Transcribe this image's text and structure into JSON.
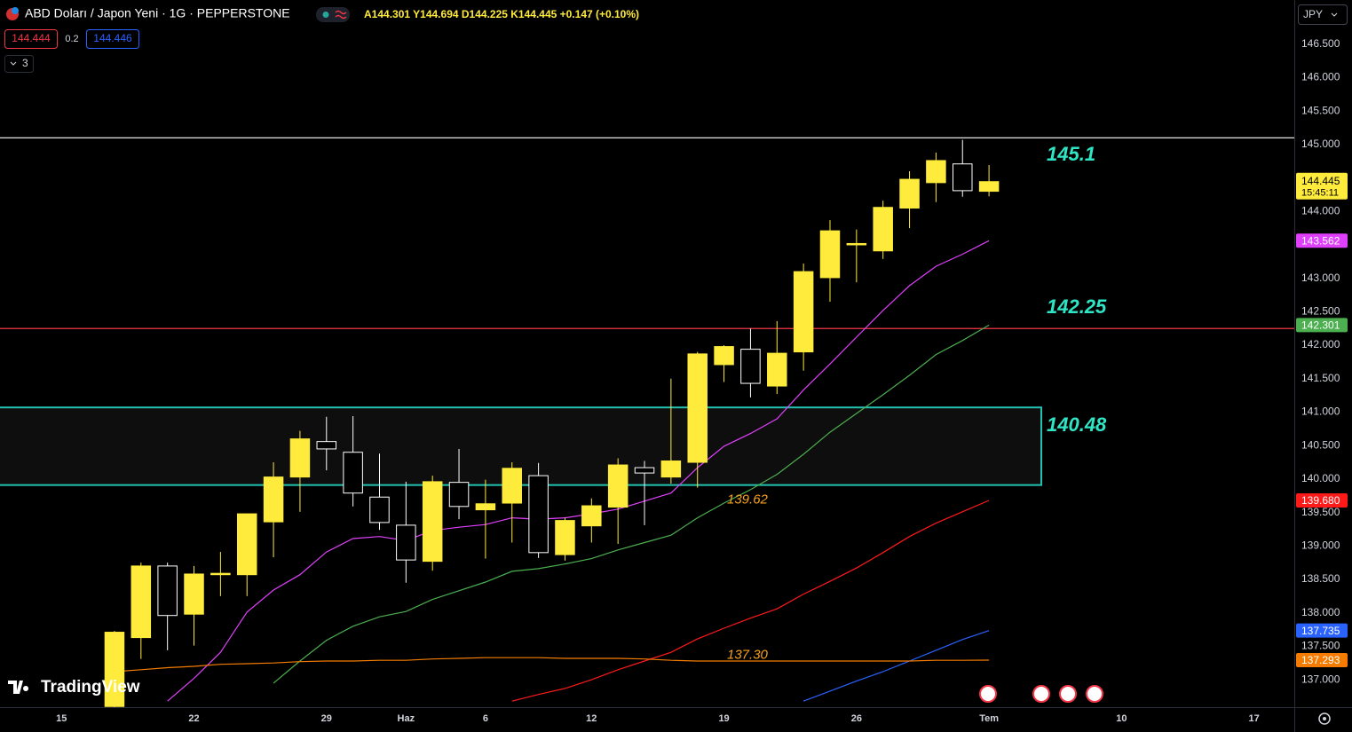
{
  "header": {
    "title": "ABD Doları / Japon Yeni · 1G · PEPPERSTONE",
    "ohlc": "A144.301 Y144.694 D144.225 K144.445 +0.147 (+0.10%)",
    "sell": "144.444",
    "spread": "0.2",
    "buy": "144.446",
    "indicators": "3",
    "currency": "JPY",
    "logo": "TradingView"
  },
  "chart_data": {
    "type": "candlestick",
    "up_color": "#ffeb3b",
    "down_color": "#000000",
    "down_border": "#ffffff",
    "open": [
      136.6,
      137.63,
      138.7,
      137.98,
      138.57,
      138.57,
      139.36,
      140.03,
      140.56,
      140.4,
      139.73,
      139.31,
      138.77,
      139.95,
      139.54,
      139.64,
      140.05,
      138.87,
      139.3,
      139.58,
      140.17,
      140.03,
      140.25,
      141.71,
      141.94,
      141.39,
      141.9,
      143.01,
      143.5,
      143.41,
      144.05,
      144.43,
      144.71,
      144.301
    ],
    "high": [
      137.73,
      138.75,
      138.75,
      138.7,
      138.91,
      139.48,
      140.25,
      140.72,
      140.93,
      140.94,
      140.38,
      139.96,
      140.05,
      140.45,
      139.99,
      140.25,
      140.24,
      139.42,
      139.71,
      140.31,
      140.27,
      141.5,
      141.9,
      142.0,
      142.25,
      142.36,
      143.22,
      143.87,
      143.73,
      144.16,
      144.6,
      144.88,
      145.07,
      144.694
    ],
    "low": [
      136.5,
      137.31,
      137.44,
      137.51,
      138.25,
      138.25,
      138.83,
      139.51,
      140.13,
      139.59,
      139.24,
      138.45,
      138.63,
      139.4,
      138.81,
      139.05,
      138.82,
      138.78,
      139.05,
      139.03,
      139.31,
      139.93,
      139.87,
      141.45,
      141.22,
      141.27,
      141.62,
      142.65,
      142.94,
      143.29,
      143.75,
      144.14,
      144.22,
      144.225
    ],
    "close": [
      137.71,
      138.7,
      137.96,
      138.58,
      138.59,
      139.48,
      140.03,
      140.6,
      140.45,
      139.79,
      139.35,
      138.79,
      139.96,
      139.59,
      139.63,
      140.16,
      138.9,
      139.38,
      139.6,
      140.21,
      140.09,
      140.27,
      141.87,
      141.98,
      141.43,
      141.88,
      143.1,
      143.71,
      143.52,
      144.06,
      144.48,
      144.76,
      144.31,
      144.445
    ],
    "countdown": "15:45:11",
    "lines": [
      {
        "color": "#e040fb",
        "values": [
          null,
          null,
          136.68,
          137.02,
          137.41,
          138.01,
          138.34,
          138.57,
          138.91,
          139.11,
          139.14,
          139.08,
          139.23,
          139.28,
          139.32,
          139.42,
          139.4,
          139.42,
          139.48,
          139.55,
          139.67,
          139.79,
          140.17,
          140.49,
          140.68,
          140.9,
          141.33,
          141.72,
          142.12,
          142.52,
          142.89,
          143.18,
          143.36,
          143.562
        ]
      },
      {
        "color": "#4caf50",
        "values": [
          null,
          null,
          null,
          null,
          null,
          null,
          136.95,
          137.28,
          137.59,
          137.8,
          137.94,
          138.02,
          138.2,
          138.33,
          138.46,
          138.62,
          138.66,
          138.73,
          138.81,
          138.94,
          139.05,
          139.16,
          139.42,
          139.64,
          139.84,
          140.07,
          140.37,
          140.7,
          140.98,
          141.26,
          141.55,
          141.86,
          142.07,
          142.301
        ]
      },
      {
        "color": "#ff1a1a",
        "values": [
          null,
          null,
          null,
          null,
          null,
          null,
          null,
          null,
          null,
          null,
          null,
          null,
          null,
          null,
          null,
          136.68,
          136.78,
          136.87,
          137.0,
          137.15,
          137.28,
          137.41,
          137.61,
          137.77,
          137.92,
          138.06,
          138.28,
          138.47,
          138.67,
          138.9,
          139.14,
          139.34,
          139.51,
          139.68
        ],
        "value_labels": [
          null,
          null,
          null,
          null,
          null,
          null,
          null,
          null,
          null,
          null,
          null,
          null,
          null,
          null,
          null,
          null,
          null,
          null,
          null,
          null,
          null,
          null,
          null,
          null,
          null,
          null,
          null,
          null,
          null,
          null,
          null,
          null,
          null,
          "139.680"
        ]
      },
      {
        "color": "#2962ff",
        "values": [
          null,
          null,
          null,
          null,
          null,
          null,
          null,
          null,
          null,
          null,
          null,
          null,
          null,
          null,
          null,
          null,
          null,
          null,
          null,
          null,
          null,
          null,
          null,
          null,
          null,
          null,
          136.68,
          136.83,
          136.98,
          137.12,
          137.28,
          137.44,
          137.6,
          137.735
        ]
      },
      {
        "color": "#f57c00",
        "values": [
          137.12,
          137.15,
          137.18,
          137.2,
          137.23,
          137.24,
          137.25,
          137.27,
          137.28,
          137.28,
          137.29,
          137.29,
          137.31,
          137.32,
          137.33,
          137.33,
          137.33,
          137.32,
          137.32,
          137.32,
          137.31,
          137.29,
          137.28,
          137.28,
          137.28,
          137.28,
          137.28,
          137.28,
          137.28,
          137.28,
          137.28,
          137.29,
          137.29,
          137.293
        ]
      }
    ],
    "levels": [
      {
        "value": 145.1,
        "label": "145.1",
        "color": "#ffffff"
      },
      {
        "value": 142.25,
        "label": "142.25",
        "color": "#f23645"
      }
    ],
    "zone": {
      "from": 139.91,
      "to": 141.07,
      "label": "140.48",
      "color": "#22c1b0"
    },
    "notes": [
      {
        "value": 139.62,
        "label": "139.62"
      },
      {
        "value": 137.3,
        "label": "137.30"
      }
    ],
    "ylim": [
      136.59,
      147.16
    ],
    "yticks": [
      {
        "value": 137,
        "label": "137.000"
      },
      {
        "value": 137.5,
        "label": "137.500"
      },
      {
        "value": 138,
        "label": "138.000"
      },
      {
        "value": 138.5,
        "label": "138.500"
      },
      {
        "value": 139,
        "label": "139.000"
      },
      {
        "value": 139.5,
        "label": "139.500"
      },
      {
        "value": 140,
        "label": "140.000"
      },
      {
        "value": 140.5,
        "label": "140.500"
      },
      {
        "value": 141,
        "label": "141.000"
      },
      {
        "value": 141.5,
        "label": "141.500"
      },
      {
        "value": 142,
        "label": "142.000"
      },
      {
        "value": 142.5,
        "label": "142.500"
      },
      {
        "value": 143,
        "label": "143.000"
      },
      {
        "value": 143.5,
        "label": "143.500"
      },
      {
        "value": 144,
        "label": "144.000"
      },
      {
        "value": 145,
        "label": "145.000"
      },
      {
        "value": 145.5,
        "label": "145.500"
      },
      {
        "value": 146,
        "label": "146.000"
      },
      {
        "value": 146.5,
        "label": "146.500"
      }
    ],
    "xlim": [
      -4.32,
      44.52
    ],
    "xticks": [
      {
        "value": -2,
        "label": "15"
      },
      {
        "value": 3,
        "label": "22"
      },
      {
        "value": 8,
        "label": "29"
      },
      {
        "value": 11,
        "label": "Haz"
      },
      {
        "value": 14,
        "label": "6"
      },
      {
        "value": 18,
        "label": "12"
      },
      {
        "value": 23,
        "label": "19"
      },
      {
        "value": 28,
        "label": "26"
      },
      {
        "value": 33,
        "label": "Tem"
      },
      {
        "value": 38,
        "label": "10"
      },
      {
        "value": 43,
        "label": "17"
      }
    ]
  }
}
